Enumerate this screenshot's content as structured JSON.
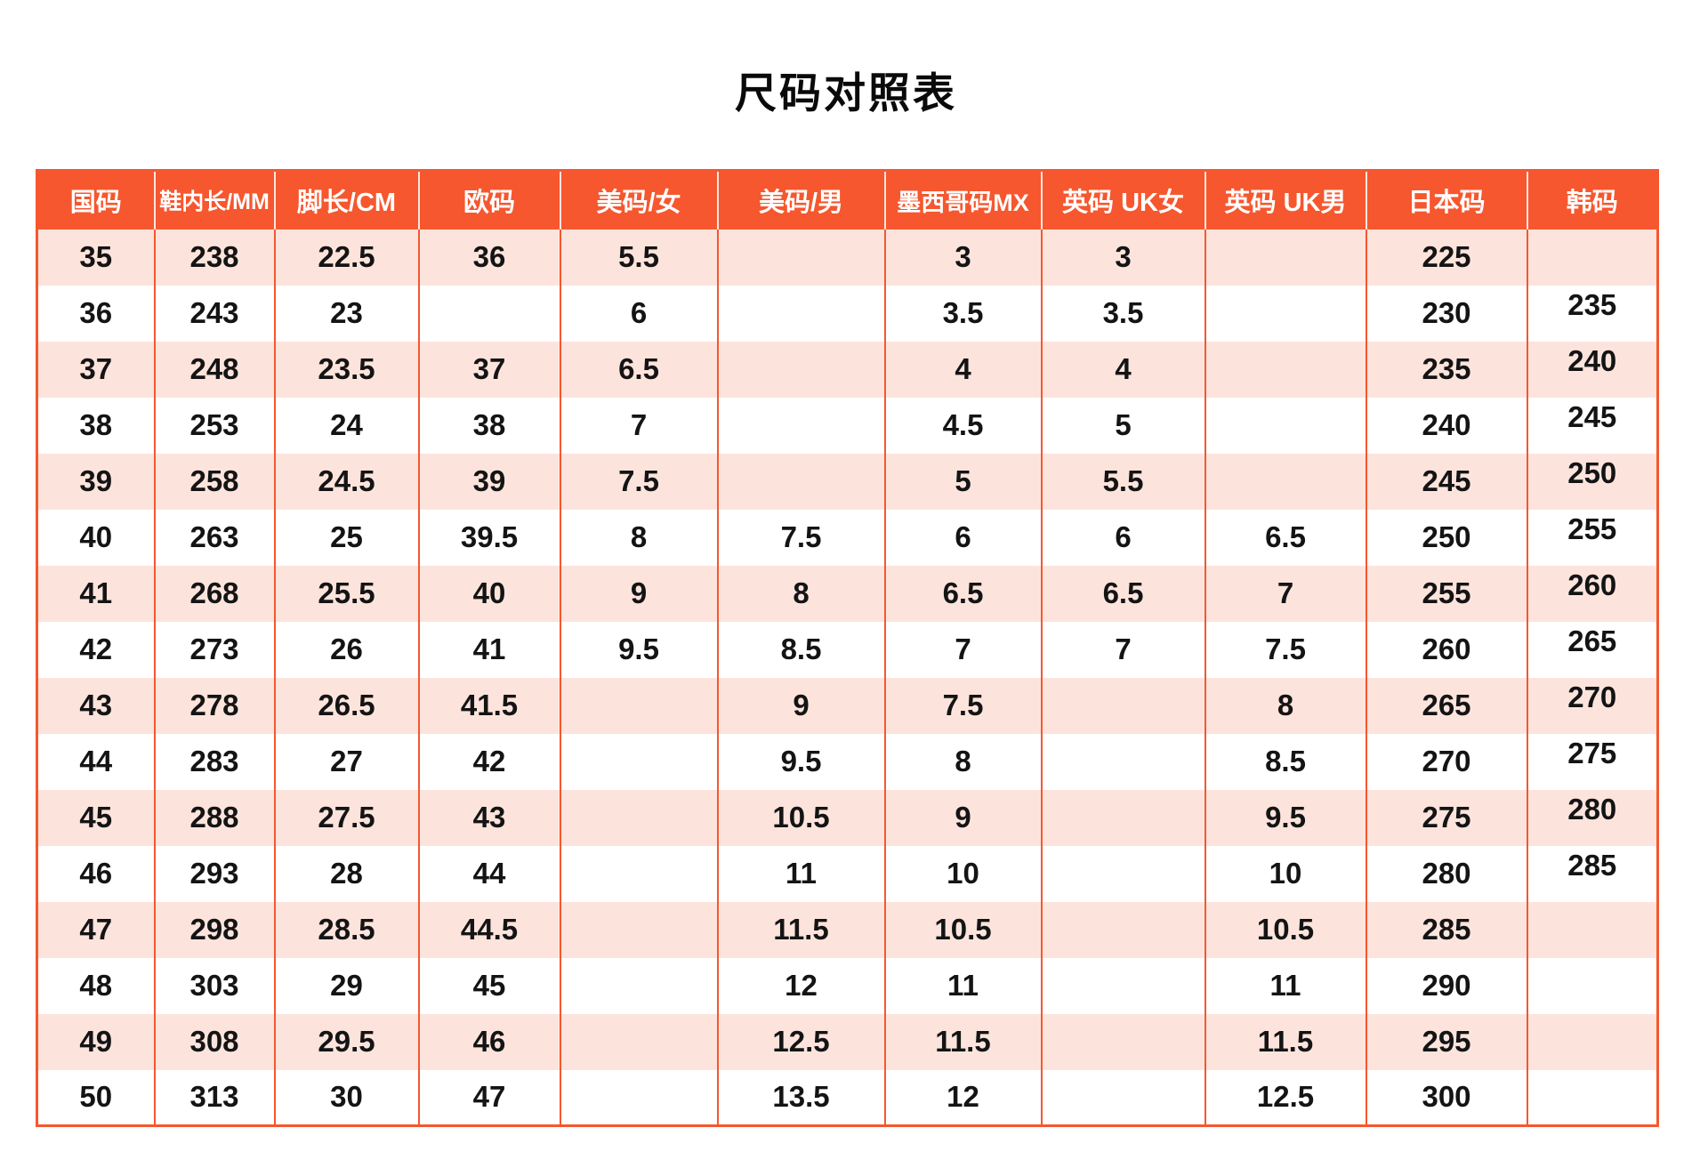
{
  "title": "尺码对照表",
  "colors": {
    "header_bg": "#F6572E",
    "grid": "#F6572E",
    "row_alt": "#FCE4DD",
    "row_base": "#FFFFFF",
    "header_text": "#FFFFFF",
    "body_text": "#141414"
  },
  "chart_data": {
    "type": "table",
    "title": "尺码对照表",
    "columns": [
      "国码",
      "鞋内长/MM",
      "脚长/CM",
      "欧码",
      "美码/女",
      "美码/男",
      "墨西哥码MX",
      "英码 UK女",
      "英码 UK男",
      "日本码",
      "韩码"
    ],
    "rows": [
      [
        "35",
        "238",
        "22.5",
        "36",
        "5.5",
        "",
        "3",
        "3",
        "",
        "225",
        ""
      ],
      [
        "36",
        "243",
        "23",
        "",
        "6",
        "",
        "3.5",
        "3.5",
        "",
        "230",
        "235"
      ],
      [
        "37",
        "248",
        "23.5",
        "37",
        "6.5",
        "",
        "4",
        "4",
        "",
        "235",
        "240"
      ],
      [
        "38",
        "253",
        "24",
        "38",
        "7",
        "",
        "4.5",
        "5",
        "",
        "240",
        "245"
      ],
      [
        "39",
        "258",
        "24.5",
        "39",
        "7.5",
        "",
        "5",
        "5.5",
        "",
        "245",
        "250"
      ],
      [
        "40",
        "263",
        "25",
        "39.5",
        "8",
        "7.5",
        "6",
        "6",
        "6.5",
        "250",
        "255"
      ],
      [
        "41",
        "268",
        "25.5",
        "40",
        "9",
        "8",
        "6.5",
        "6.5",
        "7",
        "255",
        "260"
      ],
      [
        "42",
        "273",
        "26",
        "41",
        "9.5",
        "8.5",
        "7",
        "7",
        "7.5",
        "260",
        "265"
      ],
      [
        "43",
        "278",
        "26.5",
        "41.5",
        "",
        "9",
        "7.5",
        "",
        "8",
        "265",
        "270"
      ],
      [
        "44",
        "283",
        "27",
        "42",
        "",
        "9.5",
        "8",
        "",
        "8.5",
        "270",
        "275"
      ],
      [
        "45",
        "288",
        "27.5",
        "43",
        "",
        "10.5",
        "9",
        "",
        "9.5",
        "275",
        "280"
      ],
      [
        "46",
        "293",
        "28",
        "44",
        "",
        "11",
        "10",
        "",
        "10",
        "280",
        "285"
      ],
      [
        "47",
        "298",
        "28.5",
        "44.5",
        "",
        "11.5",
        "10.5",
        "",
        "10.5",
        "285",
        ""
      ],
      [
        "48",
        "303",
        "29",
        "45",
        "",
        "12",
        "11",
        "",
        "11",
        "290",
        ""
      ],
      [
        "49",
        "308",
        "29.5",
        "46",
        "",
        "12.5",
        "11.5",
        "",
        "11.5",
        "295",
        ""
      ],
      [
        "50",
        "313",
        "30",
        "47",
        "",
        "13.5",
        "12",
        "",
        "12.5",
        "300",
        ""
      ]
    ]
  }
}
